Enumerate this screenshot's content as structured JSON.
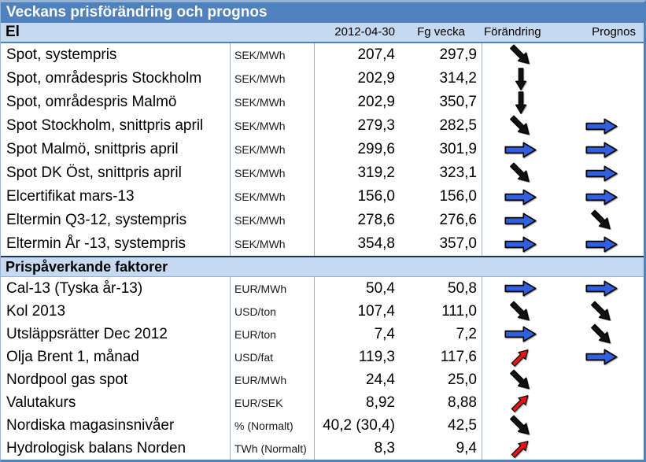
{
  "title": "Veckans prisförändring och prognos",
  "columns": {
    "date": "2012-04-30",
    "prev": "Fg vecka",
    "change": "Förändring",
    "forecast": "Prognos"
  },
  "colors": {
    "title_bg": "#4f81bd",
    "band_bg": "#c5d9f1",
    "border_light": "#95b3d7",
    "arrow_blue": "#3060e0",
    "arrow_red": "#ee1111",
    "arrow_black": "#111111"
  },
  "direction_colors": {
    "right": "blue",
    "down": "black",
    "down-right": "black",
    "up-right": "red"
  },
  "sections": [
    {
      "label": "El",
      "rows": [
        {
          "label": "Spot, systempris",
          "unit": "SEK/MWh",
          "value": "207,4",
          "prev": "297,9",
          "change": "down-right",
          "forecast": null
        },
        {
          "label": "Spot, områdespris Stockholm",
          "unit": "SEK/MWh",
          "value": "202,9",
          "prev": "314,2",
          "change": "down",
          "forecast": null
        },
        {
          "label": "Spot, områdespris Malmö",
          "unit": "SEK/MWh",
          "value": "202,9",
          "prev": "350,7",
          "change": "down",
          "forecast": null
        },
        {
          "label": "Spot Stockholm, snittpris april",
          "unit": "SEK/MWh",
          "value": "279,3",
          "prev": "282,5",
          "change": "down-right",
          "forecast": "right"
        },
        {
          "label": "Spot Malmö, snittpris april",
          "unit": "SEK/MWh",
          "value": "299,6",
          "prev": "301,9",
          "change": "right",
          "forecast": "right"
        },
        {
          "label": "Spot DK Öst, snittpris april",
          "unit": "SEK/MWh",
          "value": "319,2",
          "prev": "323,1",
          "change": "down-right",
          "forecast": "right"
        },
        {
          "label": "Elcertifikat mars-13",
          "unit": "SEK/MWh",
          "value": "156,0",
          "prev": "156,0",
          "change": "right",
          "forecast": "right"
        },
        {
          "label": "Eltermin Q3-12, systempris",
          "unit": "SEK/MWh",
          "value": "278,6",
          "prev": "276,6",
          "change": "right",
          "forecast": "down-right"
        },
        {
          "label": "Eltermin År -13, systempris",
          "unit": "SEK/MWh",
          "value": "354,8",
          "prev": "357,0",
          "change": "right",
          "forecast": "right"
        }
      ]
    },
    {
      "label": "Prispåverkande faktorer",
      "rows": [
        {
          "label": "Cal-13 (Tyska år-13)",
          "unit": "EUR/MWh",
          "value": "50,4",
          "prev": "50,8",
          "change": "right",
          "forecast": "right"
        },
        {
          "label": "Kol 2013",
          "unit": "USD/ton",
          "value": "107,4",
          "prev": "111,0",
          "change": "down-right",
          "forecast": "down-right"
        },
        {
          "label": "Utsläppsrätter Dec 2012",
          "unit": "EUR/ton",
          "value": "7,4",
          "prev": "7,2",
          "change": "right",
          "forecast": "down-right"
        },
        {
          "label": "Olja Brent 1, månad",
          "unit": "USD/fat",
          "value": "119,3",
          "prev": "117,6",
          "change": "up-right",
          "forecast": "right"
        },
        {
          "label": "Nordpool gas spot",
          "unit": "EUR/MWh",
          "value": "24,4",
          "prev": "25,0",
          "change": "down-right",
          "forecast": null
        },
        {
          "label": "Valutakurs",
          "unit": "EUR/SEK",
          "value": "8,92",
          "prev": "8,88",
          "change": "up-right",
          "forecast": null
        },
        {
          "label": "Nordiska magasinsnivåer",
          "unit": "% (Normalt)",
          "value": "40,2 (30,4)",
          "prev": "42,5",
          "change": "down-right",
          "forecast": null
        },
        {
          "label": "Hydrologisk balans Norden",
          "unit": "TWh (Normalt)",
          "value": "8,3",
          "prev": "9,4",
          "change": "up-right",
          "forecast": null
        }
      ]
    }
  ]
}
